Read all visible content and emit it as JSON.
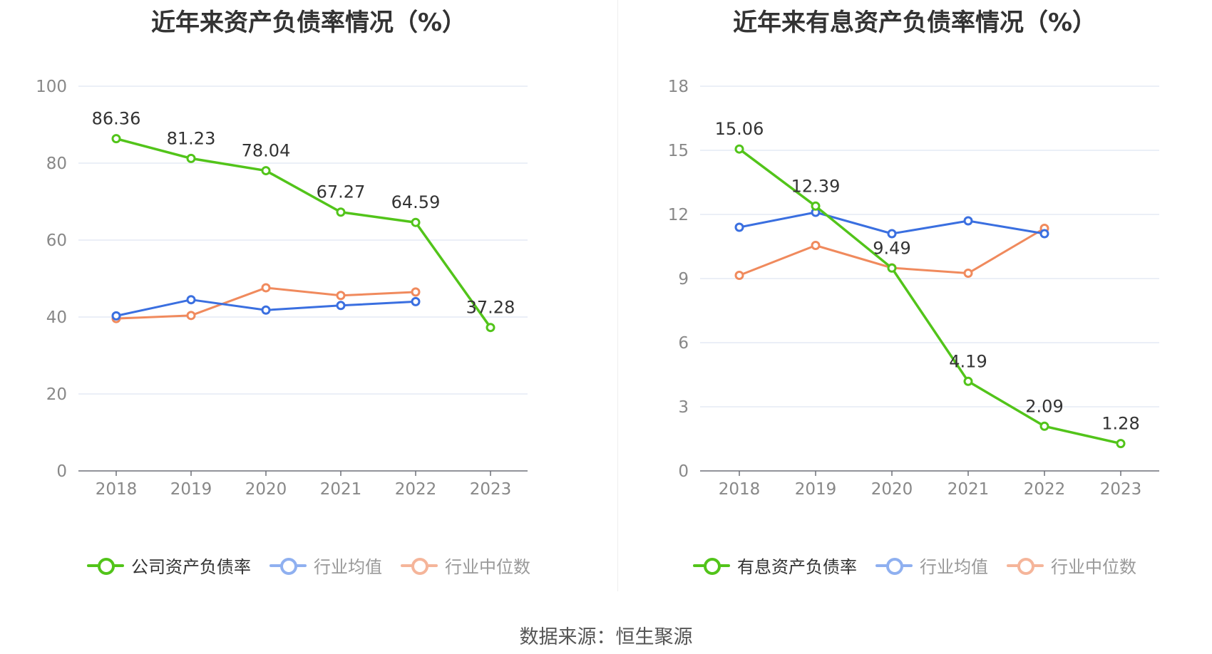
{
  "source": "数据来源：恒生聚源",
  "chart_data": [
    {
      "type": "line",
      "title": "近年来资产负债率情况（%）",
      "categories": [
        "2018",
        "2019",
        "2020",
        "2021",
        "2022",
        "2023"
      ],
      "ylim": [
        0,
        100
      ],
      "yticks": [
        0,
        20,
        40,
        60,
        80,
        100
      ],
      "grid": true,
      "legend_position": "bottom",
      "series": [
        {
          "name": "公司资产负债率",
          "color": "#52c41a",
          "values": [
            86.36,
            81.23,
            78.04,
            67.27,
            64.59,
            37.28
          ],
          "labels": [
            "86.36",
            "81.23",
            "78.04",
            "67.27",
            "64.59",
            "37.28"
          ]
        },
        {
          "name": "行业均值",
          "color": "#3a6fe0",
          "values": [
            40.3,
            44.5,
            41.8,
            43.0,
            44.0,
            null
          ]
        },
        {
          "name": "行业中位数",
          "color": "#f08a5d",
          "values": [
            39.6,
            40.4,
            47.6,
            45.6,
            46.5,
            null
          ]
        }
      ]
    },
    {
      "type": "line",
      "title": "近年来有息资产负债率情况（%）",
      "categories": [
        "2018",
        "2019",
        "2020",
        "2021",
        "2022",
        "2023"
      ],
      "ylim": [
        0,
        18
      ],
      "yticks": [
        0,
        3,
        6,
        9,
        12,
        15,
        18
      ],
      "grid": true,
      "legend_position": "bottom",
      "series": [
        {
          "name": "有息资产负债率",
          "color": "#52c41a",
          "values": [
            15.06,
            12.39,
            9.49,
            4.19,
            2.09,
            1.28
          ],
          "labels": [
            "15.06",
            "12.39",
            "9.49",
            "4.19",
            "2.09",
            "1.28"
          ]
        },
        {
          "name": "行业均值",
          "color": "#3a6fe0",
          "values": [
            11.4,
            12.1,
            11.1,
            11.7,
            11.1,
            null
          ]
        },
        {
          "name": "行业中位数",
          "color": "#f08a5d",
          "values": [
            9.15,
            10.55,
            9.5,
            9.25,
            11.35,
            null
          ]
        }
      ]
    }
  ]
}
